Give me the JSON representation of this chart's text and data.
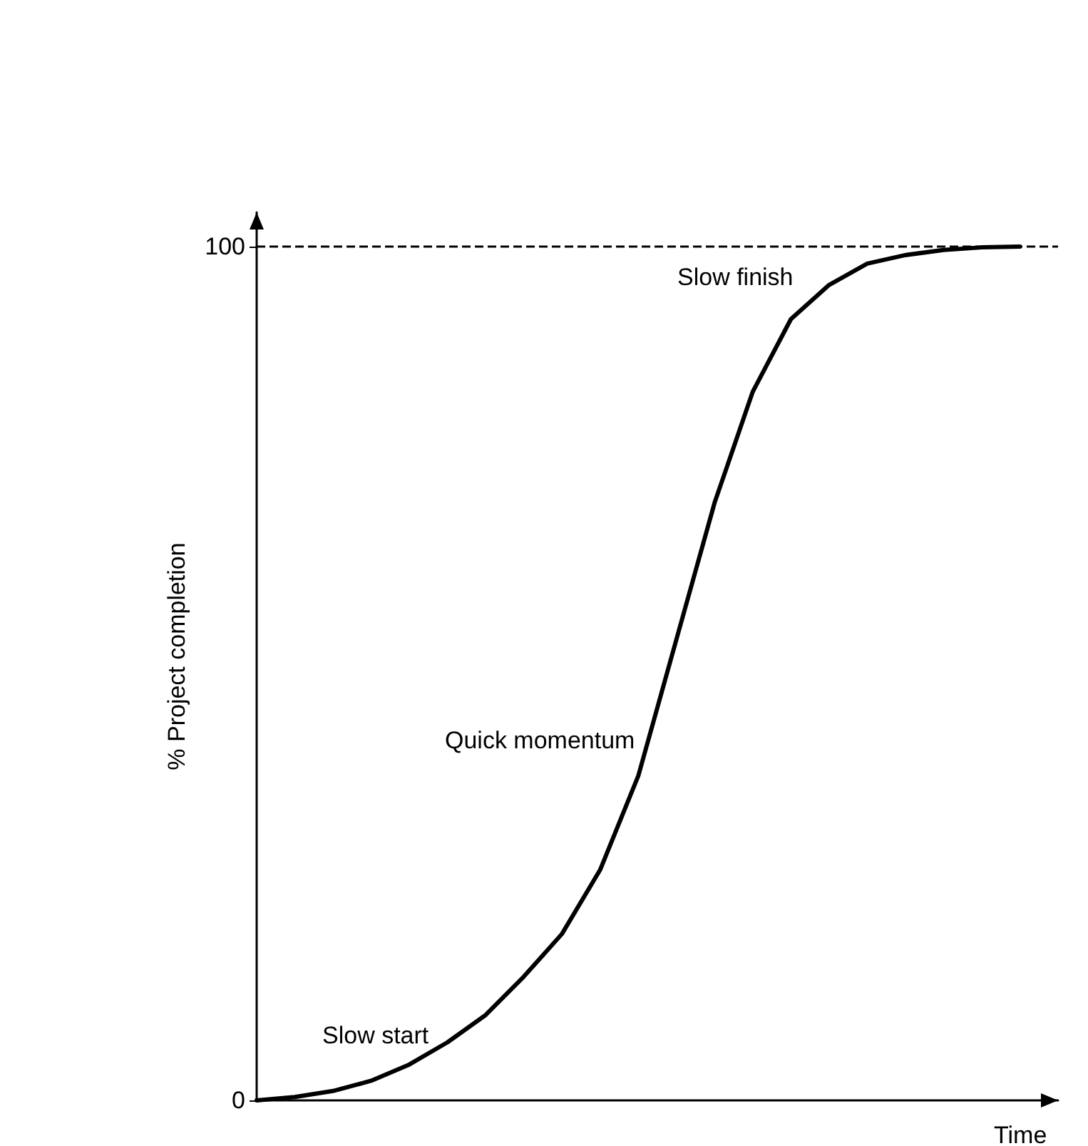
{
  "chart_data": {
    "type": "line",
    "xlabel": "Time",
    "ylabel": "% Project completion",
    "categories": [
      null,
      null,
      null,
      null,
      null,
      null,
      null,
      null,
      null,
      null,
      null,
      null,
      null,
      null,
      null,
      null,
      null,
      null,
      null,
      null,
      null,
      null
    ],
    "series": [
      {
        "color": "#000000",
        "values": [
          0,
          0.4,
          1.1,
          2.3,
          4.2,
          6.8,
          10,
          14.5,
          19.5,
          27,
          38,
          54,
          70,
          83,
          91.5,
          95.5,
          98,
          99,
          99.6,
          99.9,
          100,
          null
        ]
      }
    ],
    "ylim": [
      0,
      104
    ],
    "yticks": [
      0,
      100
    ],
    "grid": false,
    "marker": "none",
    "line_style": "solid",
    "ref_lines": [
      {
        "axis": "y",
        "value": 100,
        "line_style": "dashed",
        "color": "#000000"
      }
    ],
    "annotations": [
      "Slow start",
      "Quick momentum",
      "Slow finish"
    ]
  }
}
